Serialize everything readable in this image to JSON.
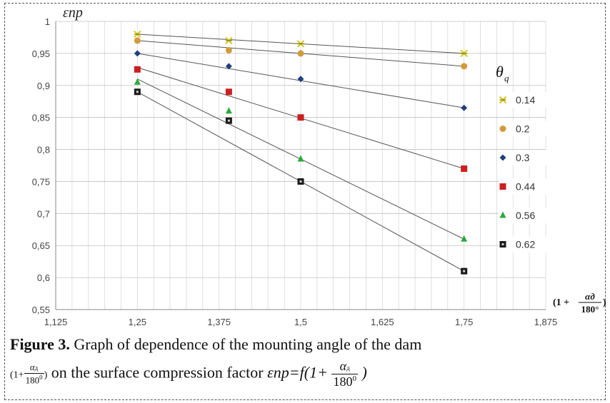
{
  "chart_data": {
    "type": "scatter",
    "xlim": [
      1.125,
      1.875
    ],
    "ylim": [
      0.55,
      1.0
    ],
    "x_ticks": [
      "1,125",
      "1,25",
      "1,375",
      "1,5",
      "1,625",
      "1,75",
      "1,875"
    ],
    "y_ticks": [
      "0,55",
      "0,6",
      "0,65",
      "0,7",
      "0,75",
      "0,8",
      "0,85",
      "0,9",
      "0,95",
      "1"
    ],
    "ylabel": "εnp",
    "xlabel": "(1 + αд / 180°)",
    "legend_title": "θq",
    "legend_position": "right",
    "grid": true,
    "series": [
      {
        "name": "0.14",
        "marker": "star",
        "color": "#d4c81c",
        "x": [
          1.25,
          1.39,
          1.5,
          1.75
        ],
        "y": [
          0.98,
          0.97,
          0.965,
          0.95
        ],
        "trend": [
          [
            1.25,
            0.98
          ],
          [
            1.75,
            0.95
          ]
        ]
      },
      {
        "name": "0.2",
        "marker": "circle",
        "color": "#d49a3a",
        "x": [
          1.25,
          1.39,
          1.5,
          1.75
        ],
        "y": [
          0.97,
          0.955,
          0.95,
          0.93
        ],
        "trend": [
          [
            1.25,
            0.97
          ],
          [
            1.75,
            0.93
          ]
        ]
      },
      {
        "name": "0.3",
        "marker": "diamond",
        "color": "#1f3f7f",
        "x": [
          1.25,
          1.39,
          1.5,
          1.75
        ],
        "y": [
          0.95,
          0.93,
          0.91,
          0.865
        ],
        "trend": [
          [
            1.25,
            0.95
          ],
          [
            1.75,
            0.865
          ]
        ]
      },
      {
        "name": "0.44",
        "marker": "square",
        "color": "#cc1f1f",
        "x": [
          1.25,
          1.39,
          1.5,
          1.75
        ],
        "y": [
          0.925,
          0.89,
          0.85,
          0.77
        ],
        "trend": [
          [
            1.25,
            0.928
          ],
          [
            1.75,
            0.77
          ]
        ]
      },
      {
        "name": "0.56",
        "marker": "triangle",
        "color": "#2aaa3a",
        "x": [
          1.25,
          1.39,
          1.5,
          1.75
        ],
        "y": [
          0.905,
          0.86,
          0.785,
          0.66
        ],
        "trend": [
          [
            1.25,
            0.91
          ],
          [
            1.75,
            0.66
          ]
        ]
      },
      {
        "name": "0.62",
        "marker": "square-outline",
        "color": "#1a1a1a",
        "x": [
          1.25,
          1.39,
          1.5,
          1.75
        ],
        "y": [
          0.89,
          0.845,
          0.75,
          0.61
        ],
        "trend": [
          [
            1.25,
            0.89
          ],
          [
            1.75,
            0.61
          ]
        ]
      }
    ]
  },
  "caption": {
    "figure_label": "Figure 3.",
    "line1": "Graph of dependence of the mounting angle of the dam",
    "line2_text": "on the surface compression factor",
    "line2_formula": "εnp=f(1+",
    "frac_num": "α",
    "frac_sub": "д",
    "frac_den": "180",
    "frac_den_sup": "0",
    "formula_close": ")",
    "prefix_open": "(1+",
    "prefix_close": ")"
  }
}
